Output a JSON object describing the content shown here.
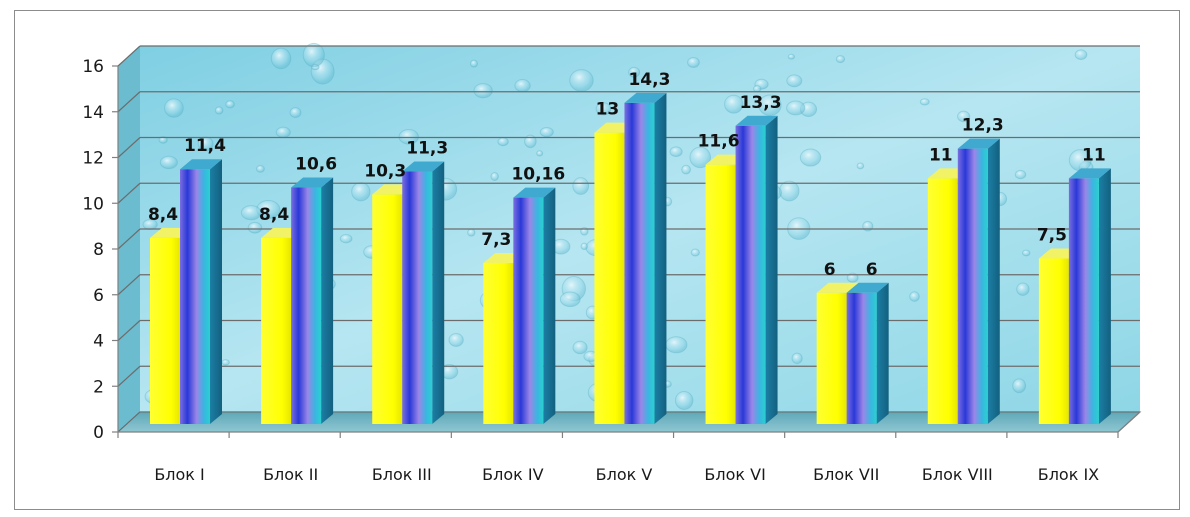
{
  "chart_data": {
    "type": "bar",
    "categories": [
      "Блок I",
      "Блок II",
      "Блок III",
      "Блок IV",
      "Блок V",
      "Блок VI",
      "Блок VII",
      "Блок VIII",
      "Блок IX"
    ],
    "series": [
      {
        "values": [
          8.4,
          8.4,
          10.3,
          7.3,
          13,
          11.6,
          6,
          11,
          7.5
        ],
        "labels": [
          "8,4",
          "8,4",
          "10,3",
          "7,3",
          "13",
          "11,6",
          "6",
          "11",
          "7,5"
        ],
        "color": "#ffff00"
      },
      {
        "values": [
          11.4,
          10.6,
          11.3,
          10.16,
          14.3,
          13.3,
          6,
          12.3,
          11
        ],
        "labels": [
          "11,4",
          "10,6",
          "11,3",
          "10,16",
          "14,3",
          "13,3",
          "6",
          "12,3",
          "11"
        ],
        "color": "#3aa0d8"
      }
    ],
    "yticks": [
      "0",
      "2",
      "4",
      "6",
      "8",
      "10",
      "12",
      "14",
      "16"
    ],
    "ylim": [
      0,
      16
    ],
    "grid": true,
    "legend": "none",
    "style": "3d-clustered-column",
    "title": "",
    "xlabel": "",
    "ylabel": ""
  }
}
